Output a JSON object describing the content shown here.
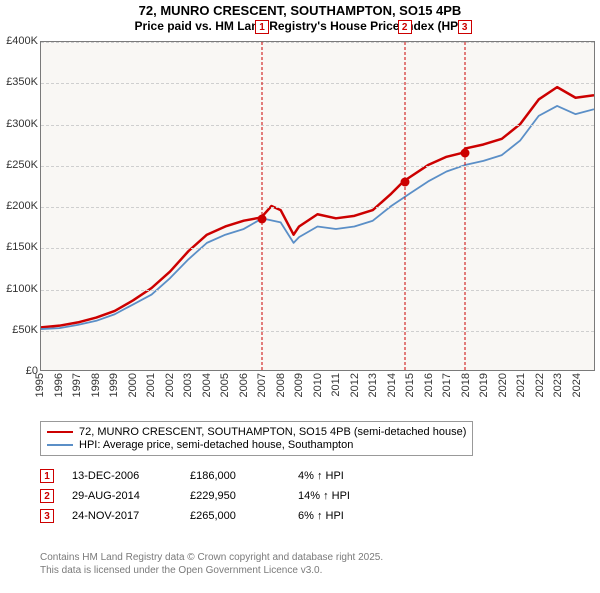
{
  "title_line1": "72, MUNRO CRESCENT, SOUTHAMPTON, SO15 4PB",
  "title_line2": "Price paid vs. HM Land Registry's House Price Index (HPI)",
  "chart": {
    "type": "line",
    "background_color": "#f9f7f4",
    "grid_color": "#cfcfcf",
    "border_color": "#7a7a7a",
    "xlim": [
      1995,
      2025
    ],
    "ylim": [
      0,
      400000
    ],
    "ytick_step": 50000,
    "yticks": [
      "£0",
      "£50K",
      "£100K",
      "£150K",
      "£200K",
      "£250K",
      "£300K",
      "£350K",
      "£400K"
    ],
    "xticks": [
      "1995",
      "1996",
      "1997",
      "1998",
      "1999",
      "2000",
      "2001",
      "2002",
      "2003",
      "2004",
      "2005",
      "2006",
      "2007",
      "2008",
      "2009",
      "2010",
      "2011",
      "2012",
      "2013",
      "2014",
      "2015",
      "2016",
      "2017",
      "2018",
      "2019",
      "2020",
      "2021",
      "2022",
      "2023",
      "2024"
    ],
    "series": [
      {
        "name": "72, MUNRO CRESCENT, SOUTHAMPTON, SO15 4PB (semi-detached house)",
        "color": "#cc0000",
        "line_width": 2.5,
        "points": [
          [
            1995,
            52000
          ],
          [
            1996,
            54000
          ],
          [
            1997,
            58000
          ],
          [
            1998,
            64000
          ],
          [
            1999,
            72000
          ],
          [
            2000,
            85000
          ],
          [
            2001,
            100000
          ],
          [
            2002,
            120000
          ],
          [
            2003,
            145000
          ],
          [
            2004,
            165000
          ],
          [
            2005,
            175000
          ],
          [
            2006,
            182000
          ],
          [
            2006.95,
            186000
          ],
          [
            2007.5,
            200000
          ],
          [
            2008,
            195000
          ],
          [
            2008.7,
            165000
          ],
          [
            2009,
            175000
          ],
          [
            2010,
            190000
          ],
          [
            2011,
            185000
          ],
          [
            2012,
            188000
          ],
          [
            2013,
            195000
          ],
          [
            2014,
            215000
          ],
          [
            2014.66,
            229950
          ],
          [
            2015,
            235000
          ],
          [
            2016,
            250000
          ],
          [
            2017,
            260000
          ],
          [
            2017.9,
            265000
          ],
          [
            2018,
            270000
          ],
          [
            2019,
            275000
          ],
          [
            2020,
            282000
          ],
          [
            2021,
            300000
          ],
          [
            2022,
            330000
          ],
          [
            2023,
            345000
          ],
          [
            2024,
            332000
          ],
          [
            2025,
            335000
          ]
        ]
      },
      {
        "name": "HPI: Average price, semi-detached house, Southampton",
        "color": "#5b8fc7",
        "line_width": 1.8,
        "points": [
          [
            1995,
            50000
          ],
          [
            1996,
            51000
          ],
          [
            1997,
            55000
          ],
          [
            1998,
            60000
          ],
          [
            1999,
            68000
          ],
          [
            2000,
            80000
          ],
          [
            2001,
            92000
          ],
          [
            2002,
            112000
          ],
          [
            2003,
            135000
          ],
          [
            2004,
            155000
          ],
          [
            2005,
            165000
          ],
          [
            2006,
            172000
          ],
          [
            2007,
            185000
          ],
          [
            2008,
            180000
          ],
          [
            2008.7,
            155000
          ],
          [
            2009,
            162000
          ],
          [
            2010,
            175000
          ],
          [
            2011,
            172000
          ],
          [
            2012,
            175000
          ],
          [
            2013,
            182000
          ],
          [
            2014,
            200000
          ],
          [
            2015,
            215000
          ],
          [
            2016,
            230000
          ],
          [
            2017,
            242000
          ],
          [
            2018,
            250000
          ],
          [
            2019,
            255000
          ],
          [
            2020,
            262000
          ],
          [
            2021,
            280000
          ],
          [
            2022,
            310000
          ],
          [
            2023,
            322000
          ],
          [
            2024,
            312000
          ],
          [
            2025,
            318000
          ]
        ]
      }
    ],
    "markers": [
      {
        "num": "1",
        "x": 2006.95,
        "y": 186000
      },
      {
        "num": "2",
        "x": 2014.66,
        "y": 229950
      },
      {
        "num": "3",
        "x": 2017.9,
        "y": 265000
      }
    ],
    "marker_color": "#cc0000"
  },
  "legend": {
    "items": [
      {
        "color": "#cc0000",
        "label": "72, MUNRO CRESCENT, SOUTHAMPTON, SO15 4PB (semi-detached house)"
      },
      {
        "color": "#5b8fc7",
        "label": "HPI: Average price, semi-detached house, Southampton"
      }
    ]
  },
  "events": [
    {
      "num": "1",
      "date": "13-DEC-2006",
      "price": "£186,000",
      "pct": "4% ↑ HPI"
    },
    {
      "num": "2",
      "date": "29-AUG-2014",
      "price": "£229,950",
      "pct": "14% ↑ HPI"
    },
    {
      "num": "3",
      "date": "24-NOV-2017",
      "price": "£265,000",
      "pct": "6% ↑ HPI"
    }
  ],
  "attribution_line1": "Contains HM Land Registry data © Crown copyright and database right 2025.",
  "attribution_line2": "This data is licensed under the Open Government Licence v3.0."
}
